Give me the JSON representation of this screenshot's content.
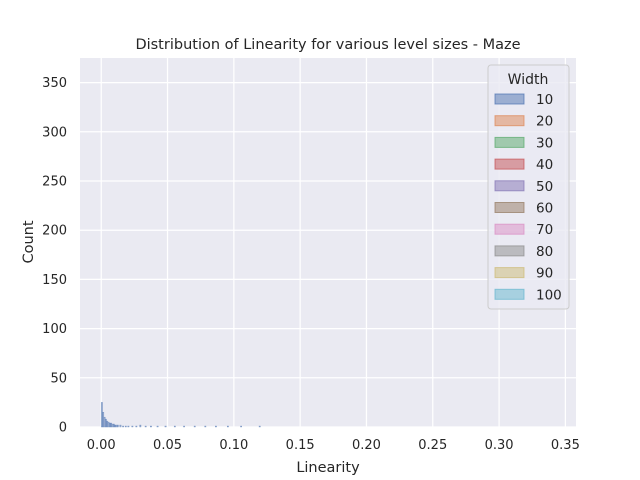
{
  "chart_data": {
    "type": "bar",
    "title": "Distribution of Linearity for various level sizes - Maze",
    "xlabel": "Linearity",
    "ylabel": "Count",
    "xlim": [
      -0.016,
      0.358
    ],
    "ylim": [
      0,
      375
    ],
    "xticks": [
      0.0,
      0.05,
      0.1,
      0.15,
      0.2,
      0.25,
      0.3,
      0.35
    ],
    "xtick_labels": [
      "0.00",
      "0.05",
      "0.10",
      "0.15",
      "0.20",
      "0.25",
      "0.30",
      "0.35"
    ],
    "yticks": [
      0,
      50,
      100,
      150,
      200,
      250,
      300,
      350
    ],
    "ytick_labels": [
      "0",
      "50",
      "100",
      "150",
      "200",
      "250",
      "300",
      "350"
    ],
    "grid": true,
    "legend": {
      "title": "Width",
      "placement": "top-right",
      "entries": [
        "10",
        "20",
        "30",
        "40",
        "50",
        "60",
        "70",
        "80",
        "90",
        "100"
      ]
    },
    "colors": {
      "background": "#eaeaf2",
      "grid": "#ffffff",
      "series": [
        "#4c72b0",
        "#dd8452",
        "#55a868",
        "#c44e52",
        "#8172b3",
        "#937860",
        "#da8bc3",
        "#8c8c8c",
        "#ccb974",
        "#64b5cd"
      ]
    },
    "bin_width": 0.001,
    "series": [
      {
        "name": "10",
        "bins": [
          {
            "x": 0.0,
            "count": 25
          },
          {
            "x": 0.001,
            "count": 15
          },
          {
            "x": 0.002,
            "count": 10
          },
          {
            "x": 0.003,
            "count": 8
          },
          {
            "x": 0.004,
            "count": 6
          },
          {
            "x": 0.005,
            "count": 5
          },
          {
            "x": 0.006,
            "count": 4
          },
          {
            "x": 0.007,
            "count": 4
          },
          {
            "x": 0.008,
            "count": 3
          },
          {
            "x": 0.009,
            "count": 3
          },
          {
            "x": 0.01,
            "count": 2
          },
          {
            "x": 0.011,
            "count": 2
          },
          {
            "x": 0.012,
            "count": 2
          },
          {
            "x": 0.014,
            "count": 2
          },
          {
            "x": 0.016,
            "count": 1
          },
          {
            "x": 0.018,
            "count": 1
          },
          {
            "x": 0.02,
            "count": 1
          },
          {
            "x": 0.023,
            "count": 1
          },
          {
            "x": 0.026,
            "count": 1
          },
          {
            "x": 0.029,
            "count": 2
          },
          {
            "x": 0.033,
            "count": 1
          },
          {
            "x": 0.037,
            "count": 1
          },
          {
            "x": 0.042,
            "count": 1
          },
          {
            "x": 0.048,
            "count": 1
          },
          {
            "x": 0.055,
            "count": 1
          },
          {
            "x": 0.062,
            "count": 1
          },
          {
            "x": 0.07,
            "count": 1
          },
          {
            "x": 0.078,
            "count": 1
          },
          {
            "x": 0.086,
            "count": 1
          },
          {
            "x": 0.095,
            "count": 1
          },
          {
            "x": 0.105,
            "count": 1
          },
          {
            "x": 0.119,
            "count": 1
          }
        ]
      }
    ]
  }
}
